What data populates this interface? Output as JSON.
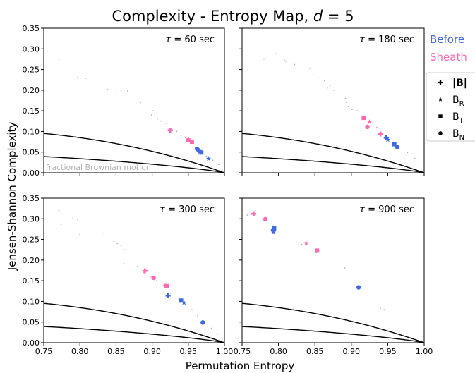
{
  "figure": {
    "title": "Complexity - Entropy Map, d = 5",
    "xlabel": "Permutation Entropy",
    "ylabel": "Jensen-Shannon Complexity",
    "fbm_label": "fractional Brownian motion"
  },
  "legend": {
    "groups": [
      {
        "label": "Before",
        "color": "#4169e1"
      },
      {
        "label": "Sheath",
        "color": "#ff69b4"
      }
    ],
    "markers": [
      {
        "label": "|B|",
        "marker": "plus"
      },
      {
        "label": "B_R",
        "marker": "star"
      },
      {
        "label": "B_T",
        "marker": "square"
      },
      {
        "label": "B_N",
        "marker": "circle"
      }
    ]
  },
  "colors": {
    "before": "#4169e1",
    "sheath": "#ff69b4",
    "fbm": "#b4b4b4",
    "bounds": "#000000"
  },
  "chart_data": [
    {
      "type": "scatter",
      "title": "τ = 60 sec",
      "xlim": [
        0.75,
        1.0
      ],
      "ylim": [
        0.0,
        0.35
      ],
      "x_ticks": [
        0.75,
        0.8,
        0.85,
        0.9,
        0.95,
        1.0
      ],
      "y_ticks": [
        0.0,
        0.05,
        0.1,
        0.15,
        0.2,
        0.25,
        0.3,
        0.35
      ],
      "fbm_points": [
        [
          0.771,
          0.274
        ],
        [
          0.797,
          0.231
        ],
        [
          0.808,
          0.229
        ],
        [
          0.838,
          0.202
        ],
        [
          0.85,
          0.2
        ],
        [
          0.857,
          0.199
        ],
        [
          0.866,
          0.198
        ],
        [
          0.884,
          0.17
        ],
        [
          0.887,
          0.172
        ],
        [
          0.894,
          0.155
        ],
        [
          0.899,
          0.14
        ],
        [
          0.901,
          0.15
        ],
        [
          0.907,
          0.13
        ],
        [
          0.912,
          0.125
        ],
        [
          0.919,
          0.12
        ],
        [
          0.927,
          0.106
        ],
        [
          0.934,
          0.1
        ],
        [
          0.94,
          0.09
        ],
        [
          0.946,
          0.085
        ],
        [
          0.953,
          0.076
        ],
        [
          0.96,
          0.061
        ],
        [
          0.968,
          0.049
        ],
        [
          0.975,
          0.04
        ],
        [
          0.984,
          0.03
        ],
        [
          0.992,
          0.02
        ]
      ],
      "before": {
        "B": [
          0.965,
          0.053
        ],
        "BR": [
          0.978,
          0.034
        ],
        "BT": [
          0.968,
          0.049
        ],
        "BN": [
          0.962,
          0.058
        ]
      },
      "sheath": {
        "B": [
          0.925,
          0.103
        ],
        "BR": [
          0.95,
          0.081
        ],
        "BT": [
          0.955,
          0.075
        ],
        "BN": [
          0.95,
          0.079
        ]
      }
    },
    {
      "type": "scatter",
      "title": "τ = 180 sec",
      "xlim": [
        0.75,
        1.0
      ],
      "ylim": [
        0.0,
        0.35
      ],
      "x_ticks": [
        0.75,
        0.8,
        0.85,
        0.9,
        0.95,
        1.0
      ],
      "y_ticks": [
        0.0,
        0.05,
        0.1,
        0.15,
        0.2,
        0.25,
        0.3,
        0.35
      ],
      "fbm_points": [
        [
          0.78,
          0.275
        ],
        [
          0.797,
          0.288
        ],
        [
          0.808,
          0.273
        ],
        [
          0.81,
          0.27
        ],
        [
          0.822,
          0.262
        ],
        [
          0.843,
          0.253
        ],
        [
          0.85,
          0.237
        ],
        [
          0.857,
          0.23
        ],
        [
          0.863,
          0.223
        ],
        [
          0.867,
          0.205
        ],
        [
          0.871,
          0.211
        ],
        [
          0.876,
          0.2
        ],
        [
          0.892,
          0.18
        ],
        [
          0.893,
          0.171
        ],
        [
          0.896,
          0.16
        ],
        [
          0.901,
          0.153
        ],
        [
          0.908,
          0.15
        ],
        [
          0.919,
          0.13
        ],
        [
          0.929,
          0.12
        ],
        [
          0.935,
          0.11
        ],
        [
          0.942,
          0.096
        ],
        [
          0.95,
          0.086
        ],
        [
          0.958,
          0.073
        ],
        [
          0.966,
          0.063
        ],
        [
          0.977,
          0.049
        ],
        [
          0.987,
          0.035
        ]
      ],
      "before": {
        "B": [
          0.948,
          0.085
        ],
        "BR": [
          0.95,
          0.08
        ],
        "BT": [
          0.959,
          0.069
        ],
        "BN": [
          0.963,
          0.062
        ]
      },
      "sheath": {
        "B": [
          0.94,
          0.094
        ],
        "BR": [
          0.925,
          0.123
        ],
        "BT": [
          0.917,
          0.133
        ],
        "BN": [
          0.922,
          0.111
        ]
      }
    },
    {
      "type": "scatter",
      "title": "τ = 300 sec",
      "xlim": [
        0.75,
        1.0
      ],
      "ylim": [
        0.0,
        0.35
      ],
      "x_ticks": [
        0.75,
        0.8,
        0.85,
        0.9,
        0.95,
        1.0
      ],
      "y_ticks": [
        0.0,
        0.05,
        0.1,
        0.15,
        0.2,
        0.25,
        0.3,
        0.35
      ],
      "fbm_points": [
        [
          0.771,
          0.32
        ],
        [
          0.774,
          0.286
        ],
        [
          0.79,
          0.3
        ],
        [
          0.797,
          0.298
        ],
        [
          0.8,
          0.262
        ],
        [
          0.833,
          0.265
        ],
        [
          0.847,
          0.245
        ],
        [
          0.852,
          0.24
        ],
        [
          0.857,
          0.235
        ],
        [
          0.862,
          0.225
        ],
        [
          0.861,
          0.192
        ],
        [
          0.88,
          0.185
        ],
        [
          0.888,
          0.17
        ],
        [
          0.898,
          0.16
        ],
        [
          0.906,
          0.15
        ],
        [
          0.917,
          0.137
        ],
        [
          0.925,
          0.12
        ],
        [
          0.937,
          0.106
        ],
        [
          0.946,
          0.093
        ],
        [
          0.955,
          0.08
        ],
        [
          0.963,
          0.066
        ],
        [
          0.972,
          0.05
        ],
        [
          0.982,
          0.035
        ],
        [
          0.99,
          0.02
        ]
      ],
      "before": {
        "B": [
          0.922,
          0.114
        ],
        "BR": [
          0.944,
          0.097
        ],
        "BT": [
          0.94,
          0.102
        ],
        "BN": [
          0.97,
          0.049
        ]
      },
      "sheath": {
        "B": [
          0.89,
          0.174
        ],
        "BR": [
          0.918,
          0.138
        ],
        "BT": [
          0.92,
          0.137
        ],
        "BN": [
          0.902,
          0.157
        ]
      }
    },
    {
      "type": "scatter",
      "title": "τ = 900 sec",
      "xlim": [
        0.75,
        1.0
      ],
      "ylim": [
        0.0,
        0.35
      ],
      "x_ticks": [
        0.75,
        0.8,
        0.85,
        0.9,
        0.95,
        1.0
      ],
      "y_ticks": [
        0.0,
        0.05,
        0.1,
        0.15,
        0.2,
        0.25,
        0.3,
        0.35
      ],
      "fbm_points": [
        [
          0.757,
          0.309
        ],
        [
          0.768,
          0.32
        ],
        [
          0.781,
          0.295
        ],
        [
          0.793,
          0.272
        ],
        [
          0.801,
          0.27
        ],
        [
          0.832,
          0.238
        ],
        [
          0.852,
          0.218
        ],
        [
          0.891,
          0.181
        ],
        [
          0.94,
          0.083
        ],
        [
          0.945,
          0.08
        ]
      ],
      "before": {
        "B": [
          0.793,
          0.273
        ],
        "BR": [
          0.793,
          0.267
        ],
        "BT": [
          0.794,
          0.277
        ],
        "BN": [
          0.91,
          0.134
        ]
      },
      "sheath": {
        "B": [
          0.766,
          0.312
        ],
        "BR": [
          0.838,
          0.241
        ],
        "BT": [
          0.853,
          0.223
        ],
        "BN": [
          0.782,
          0.299
        ]
      }
    }
  ]
}
